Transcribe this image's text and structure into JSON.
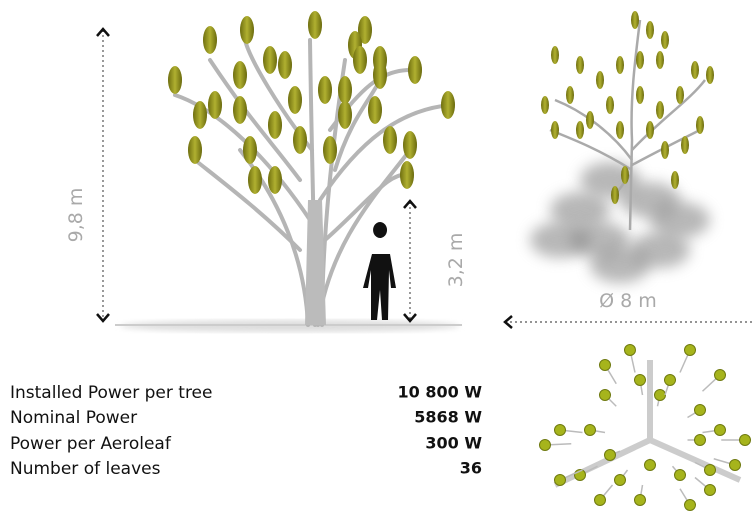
{
  "dimensions": {
    "height": "9,8 m",
    "lower_height": "3,2 m",
    "diameter": "Ø 8 m"
  },
  "specs": {
    "rows": [
      [
        "Installed Power per tree",
        "10 800 W"
      ],
      [
        "Nominal Power",
        "5868 W"
      ],
      [
        "Power per Aeroleaf",
        "300 W"
      ],
      [
        "Number of leaves",
        "36"
      ]
    ]
  }
}
